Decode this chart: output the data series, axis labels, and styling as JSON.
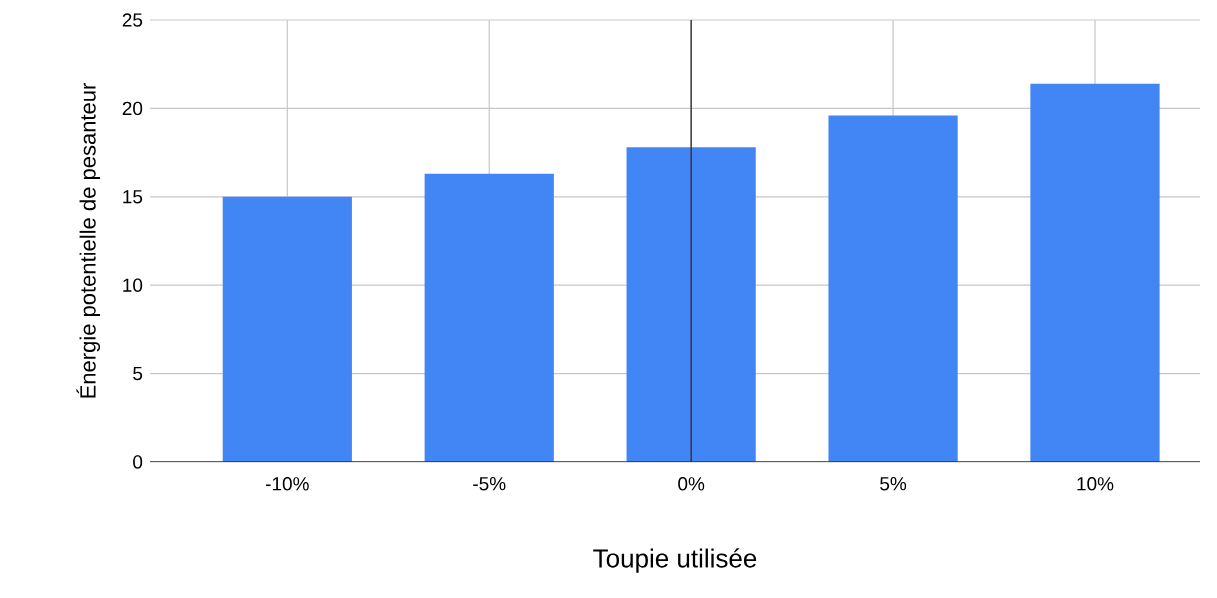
{
  "chart_data": {
    "type": "bar",
    "xlabel": "Toupie utilisée",
    "ylabel": "Énergie potentielle de pesanteur",
    "x": [
      -10,
      -5,
      0,
      5,
      10
    ],
    "values": [
      15.0,
      16.3,
      17.8,
      19.6,
      21.4
    ],
    "color": "#4285f4",
    "xlim": [
      -13.4,
      12.6
    ],
    "xticks": [
      {
        "value": -10,
        "label": "-10%"
      },
      {
        "value": -5,
        "label": "-5%"
      },
      {
        "value": 0,
        "label": "0%"
      },
      {
        "value": 5,
        "label": "5%"
      },
      {
        "value": 10,
        "label": "10%"
      }
    ],
    "ylim": [
      0,
      25
    ],
    "yticks": [
      0,
      5,
      10,
      15,
      20,
      25
    ],
    "grid": true,
    "ref_lines": [
      {
        "axis": "x",
        "value": 0,
        "color": "#333333"
      }
    ]
  }
}
